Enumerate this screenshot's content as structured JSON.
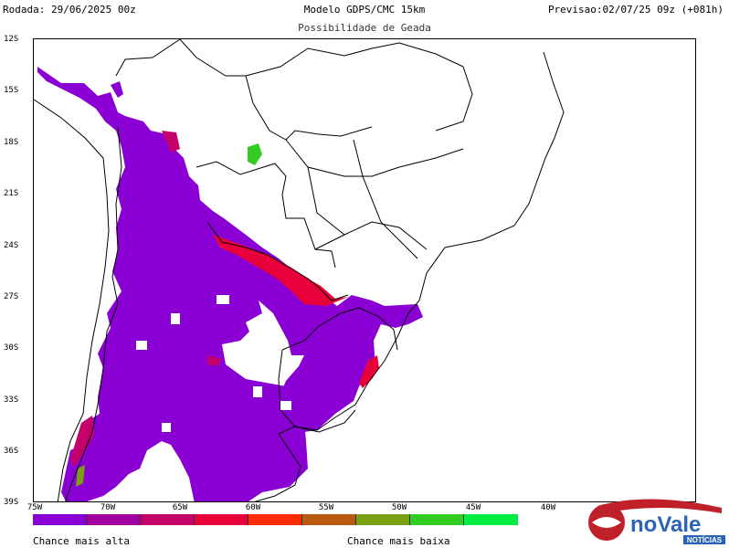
{
  "header": {
    "run": "Rodada: 29/06/2025 00z",
    "model": "Modelo GDPS/CMC 15km",
    "forecast": "Previsao:02/07/25 09z (+081h)"
  },
  "subtitle": "Possibilidade de Geada",
  "lat_labels": [
    "12S",
    "15S",
    "18S",
    "21S",
    "24S",
    "27S",
    "30S",
    "33S",
    "36S",
    "39S"
  ],
  "lon_labels": [
    "75W",
    "70W",
    "65W",
    "60W",
    "55W",
    "50W",
    "45W",
    "40W"
  ],
  "colorbar": {
    "colors": [
      "#8a00d4",
      "#a1009e",
      "#c4006a",
      "#e8003a",
      "#ff2b00",
      "#b85a10",
      "#7aa010",
      "#33cc22",
      "#00ee44"
    ]
  },
  "legend": {
    "high_label": "Chance mais alta",
    "low_label": "Chance mais baixa"
  },
  "logo": {
    "text": "noVale",
    "subtext": "NOTÍCIAS",
    "colors": {
      "brand": "#2a64b4",
      "accent": "#c0202a"
    }
  },
  "map": {
    "frost_color_main": "#8a00d4",
    "frost_color_edge": "#e8003a",
    "frost_color_mid": "#c4006a",
    "frost_color_low": "#33cc22"
  }
}
